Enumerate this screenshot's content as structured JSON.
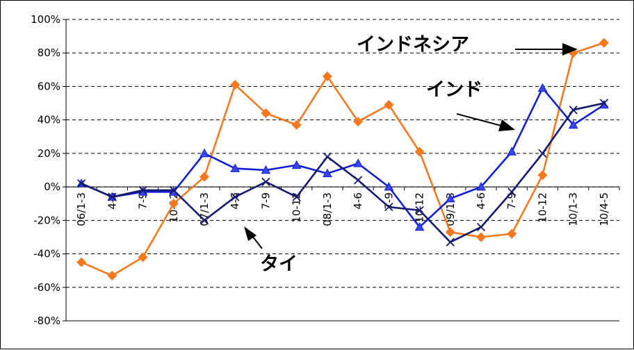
{
  "chart_data": {
    "type": "line",
    "title": "",
    "xlabel": "",
    "ylabel": "",
    "ylim": [
      -80,
      100
    ],
    "yticks": [
      100,
      80,
      60,
      40,
      20,
      0,
      -20,
      -40,
      -60,
      -80
    ],
    "ytick_labels": [
      "100%",
      "80%",
      "60%",
      "40%",
      "20%",
      "0%",
      "-20%",
      "-40%",
      "-60%",
      "-80%"
    ],
    "grid": true,
    "categories": [
      "06/1-3",
      "4-6",
      "7-9",
      "10-12",
      "07/1-3",
      "4-6",
      "7-9",
      "10-12",
      "08/1-3",
      "4-6",
      "7-9",
      "10-12",
      "09/1-3",
      "4-6",
      "7-9",
      "10-12",
      "10/1-3",
      "10/4-5"
    ],
    "series": [
      {
        "name": "インドネシア",
        "color": "#f7791f",
        "marker": "diamond",
        "values": [
          -45,
          -53,
          -42,
          -10,
          6,
          61,
          44,
          37,
          66,
          39,
          49,
          21,
          -27,
          -30,
          -28,
          7,
          80,
          86
        ]
      },
      {
        "name": "インド",
        "color": "#0f1ed8",
        "marker": "triangle",
        "values": [
          2,
          -6,
          -3,
          -3,
          20,
          11,
          10,
          13,
          8,
          14,
          0,
          -24,
          -7,
          0,
          21,
          59,
          37,
          49
        ]
      },
      {
        "name": "タイ",
        "color": "#161a6e",
        "marker": "x",
        "values": [
          2,
          -6,
          -2,
          -2,
          -20,
          -6,
          3,
          -6,
          18,
          4,
          -12,
          -14,
          -33,
          -24,
          -3,
          20,
          46,
          50
        ]
      }
    ],
    "annotations": [
      {
        "text": "インドネシア",
        "series": "インドネシア"
      },
      {
        "text": "インド",
        "series": "インド"
      },
      {
        "text": "タイ",
        "series": "タイ"
      }
    ]
  }
}
